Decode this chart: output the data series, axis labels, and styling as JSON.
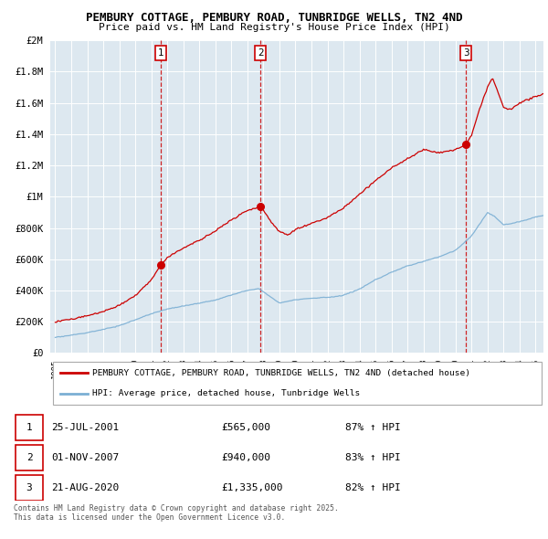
{
  "title": "PEMBURY COTTAGE, PEMBURY ROAD, TUNBRIDGE WELLS, TN2 4ND",
  "subtitle": "Price paid vs. HM Land Registry's House Price Index (HPI)",
  "legend_house": "PEMBURY COTTAGE, PEMBURY ROAD, TUNBRIDGE WELLS, TN2 4ND (detached house)",
  "legend_hpi": "HPI: Average price, detached house, Tunbridge Wells",
  "transactions": [
    {
      "num": 1,
      "date": "25-JUL-2001",
      "price": "£565,000",
      "hpi": "87% ↑ HPI"
    },
    {
      "num": 2,
      "date": "01-NOV-2007",
      "price": "£940,000",
      "hpi": "83% ↑ HPI"
    },
    {
      "num": 3,
      "date": "21-AUG-2020",
      "price": "£1,335,000",
      "hpi": "82% ↑ HPI"
    }
  ],
  "transaction_years": [
    2001.57,
    2007.83,
    2020.64
  ],
  "transaction_prices": [
    565000,
    940000,
    1335000
  ],
  "footer": "Contains HM Land Registry data © Crown copyright and database right 2025.\nThis data is licensed under the Open Government Licence v3.0.",
  "house_color": "#cc0000",
  "hpi_color": "#7bafd4",
  "vline_color": "#cc0000",
  "bg_color": "#dde8f0",
  "ylim": [
    0,
    2000000
  ],
  "xlim_start": 1994.7,
  "xlim_end": 2025.5,
  "yticks": [
    0,
    200000,
    400000,
    600000,
    800000,
    1000000,
    1200000,
    1400000,
    1600000,
    1800000,
    2000000
  ]
}
